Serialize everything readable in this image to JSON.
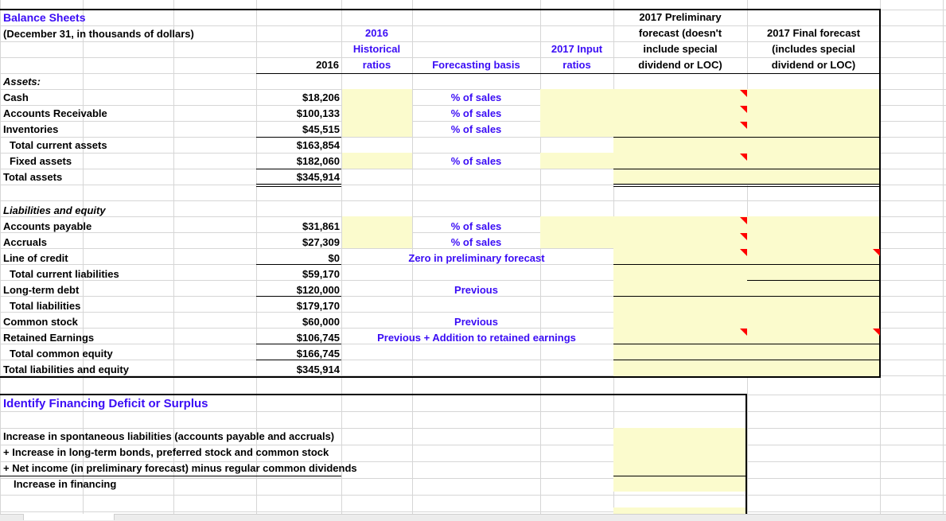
{
  "sheet": {
    "title": "Balance Sheets",
    "subtitle": "(December 31, in thousands of dollars)",
    "headers": {
      "year": "2016",
      "historical_line1": "2016",
      "historical_line2": "Historical",
      "historical_line3": "ratios",
      "basis": "Forecasting basis",
      "input_line1": "2017 Input",
      "input_line2": "ratios",
      "prelim_line1": "2017 Preliminary",
      "prelim_line2": "forecast (doesn't",
      "prelim_line3": "include special",
      "prelim_line4": "dividend or LOC)",
      "final_line1": "2017 Final forecast",
      "final_line2": "(includes special",
      "final_line3": "dividend or LOC)"
    },
    "assets_heading": "Assets:",
    "assets": [
      {
        "label": "Cash",
        "value": "$18,206",
        "basis": "% of sales"
      },
      {
        "label": "Accounts Receivable",
        "value": "$100,133",
        "basis": "% of sales"
      },
      {
        "label": "Inventories",
        "value": "$45,515",
        "basis": "% of sales"
      },
      {
        "label": "Total current assets",
        "value": "$163,854",
        "basis": ""
      },
      {
        "label": "Fixed assets",
        "value": "$182,060",
        "basis": "% of sales"
      },
      {
        "label": "Total assets",
        "value": "$345,914",
        "basis": ""
      }
    ],
    "liabilities_heading": "Liabilities and equity",
    "liabilities": [
      {
        "label": "Accounts payable",
        "value": "$31,861",
        "basis": "% of sales"
      },
      {
        "label": "Accruals",
        "value": "$27,309",
        "basis": "% of sales"
      },
      {
        "label": "Line of credit",
        "value": "$0",
        "basis": "Zero in preliminary forecast"
      },
      {
        "label": "Total current liabilities",
        "value": "$59,170",
        "basis": ""
      },
      {
        "label": "Long-term debt",
        "value": "$120,000",
        "basis": "Previous"
      },
      {
        "label": "Total liabilities",
        "value": "$179,170",
        "basis": ""
      },
      {
        "label": "Common stock",
        "value": "$60,000",
        "basis": "Previous"
      },
      {
        "label": "Retained Earnings",
        "value": "$106,745",
        "basis": "Previous + Addition to retained earnings"
      },
      {
        "label": "Total common equity",
        "value": "$166,745",
        "basis": ""
      },
      {
        "label": "Total liabilities and equity",
        "value": "$345,914",
        "basis": ""
      }
    ]
  },
  "financing": {
    "title": "Identify Financing Deficit or Surplus",
    "rows": [
      "Increase in spontaneous liabilities (accounts payable and accruals)",
      "+ Increase in long-term bonds, preferred stock and common stock",
      "+ Net income (in preliminary forecast) minus regular common dividends",
      "Increase in financing"
    ]
  },
  "colors": {
    "input_fill": "#fbfbcd",
    "heading_blue": "#3a0cf5",
    "comment_marker": "#ff0000"
  }
}
